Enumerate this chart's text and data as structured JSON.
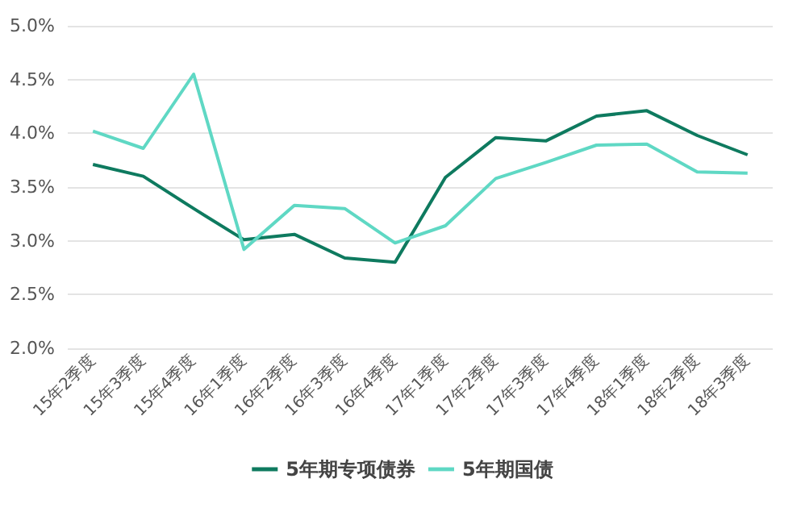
{
  "chart_data": {
    "type": "line",
    "categories": [
      "15年2季度",
      "15年3季度",
      "15年4季度",
      "16年1季度",
      "16年2季度",
      "16年3季度",
      "16年4季度",
      "17年1季度",
      "17年2季度",
      "17年3季度",
      "17年4季度",
      "18年1季度",
      "18年2季度",
      "18年3季度"
    ],
    "series": [
      {
        "name": "5年期专项债券",
        "color": "#0e7a5f",
        "values": [
          3.71,
          3.6,
          3.3,
          3.01,
          3.06,
          2.84,
          2.8,
          3.59,
          3.96,
          3.93,
          4.16,
          4.21,
          3.98,
          3.8
        ]
      },
      {
        "name": "5年期国债",
        "color": "#5fd8c4",
        "values": [
          4.02,
          3.86,
          4.55,
          2.92,
          3.33,
          3.3,
          2.98,
          3.14,
          3.58,
          3.73,
          3.89,
          3.9,
          3.64,
          3.63
        ]
      }
    ],
    "ylim": [
      2,
      5
    ],
    "yticks": [
      {
        "value": 2,
        "label": "2.0%"
      },
      {
        "value": 2.5,
        "label": "2.5%"
      },
      {
        "value": 3,
        "label": "3.0%"
      },
      {
        "value": 3.5,
        "label": "3.5%"
      },
      {
        "value": 4,
        "label": "4.0%"
      },
      {
        "value": 4.5,
        "label": "4.5%"
      },
      {
        "value": 5,
        "label": "5.0%"
      }
    ],
    "grid": "y",
    "legend": "bottom",
    "marker": "none",
    "line_style": "solid"
  }
}
